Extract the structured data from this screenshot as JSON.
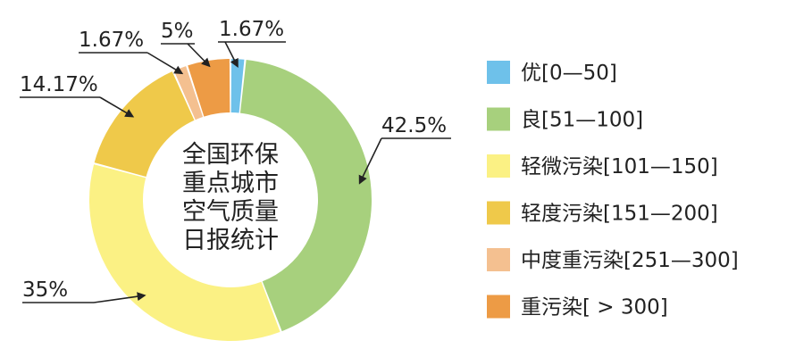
{
  "chart_data": {
    "type": "pie",
    "variant": "donut",
    "center_text": [
      "全国环保",
      "重点城市",
      "空气质量",
      "日报统计"
    ],
    "series": [
      {
        "label": "优[0—50]",
        "value": 1.67,
        "value_label": "1.67%",
        "color": "#6ec1ea"
      },
      {
        "label": "良[51—100]",
        "value": 42.5,
        "value_label": "42.5%",
        "color": "#a7d07d"
      },
      {
        "label": "轻微污染[101—150]",
        "value": 35,
        "value_label": "35%",
        "color": "#fbf184"
      },
      {
        "label": "轻度污染[151—200]",
        "value": 14.17,
        "value_label": "14.17%",
        "color": "#efc94a"
      },
      {
        "label": "中度重污染[251—300]",
        "value": 1.67,
        "value_label": "1.67%",
        "color": "#f4c090"
      },
      {
        "label": "重污染[ > 300]",
        "value": 5,
        "value_label": "5%",
        "color": "#ed9b45"
      }
    ],
    "legend_position": "right"
  }
}
